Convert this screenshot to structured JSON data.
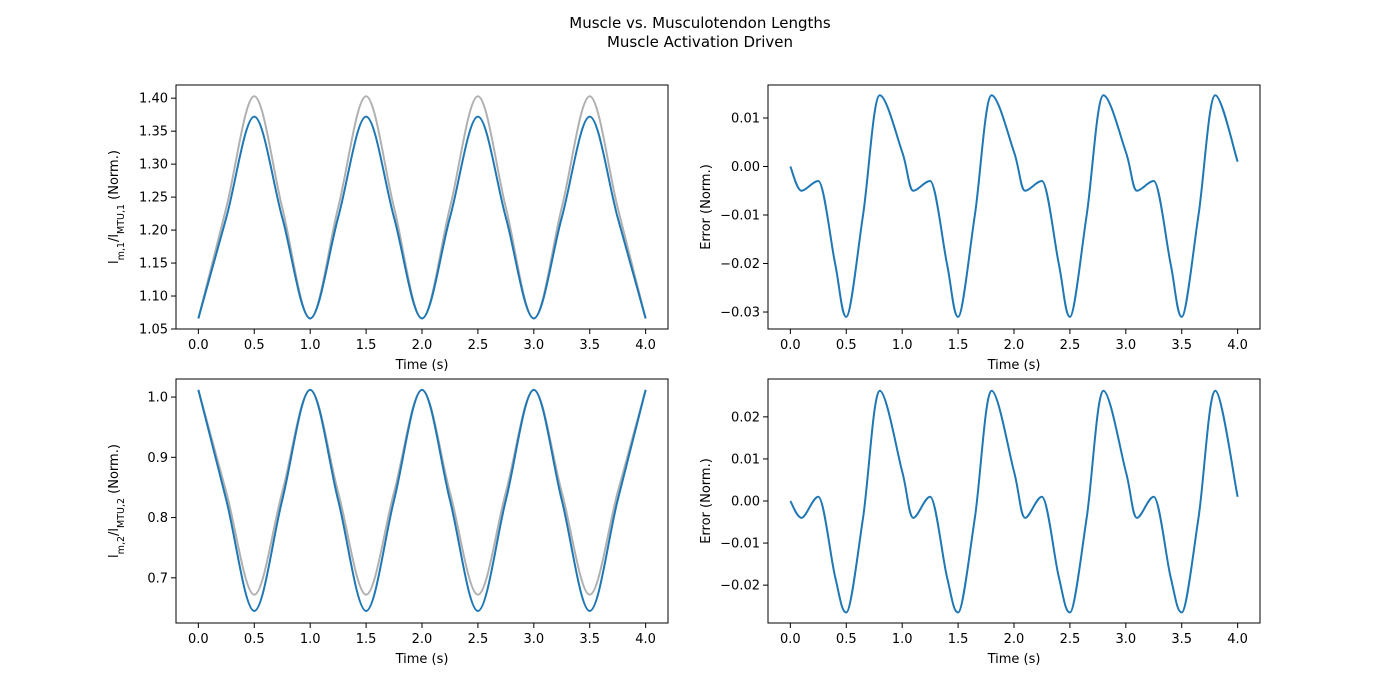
{
  "figure": {
    "title_line1": "Muscle vs. Musculotendon Lengths",
    "title_line2": "Muscle Activation Driven"
  },
  "colors": {
    "main_line": "#1f77b4",
    "reference_line": "#b0b0b0"
  },
  "chart_data": [
    {
      "type": "line",
      "id": "top-left",
      "xlabel": "Time (s)",
      "ylabel": "l_{m,1}/l_{MTU,1} (Norm.)",
      "xlim": [
        -0.2,
        4.2
      ],
      "ylim": [
        1.05,
        1.42
      ],
      "xticks": [
        0.0,
        0.5,
        1.0,
        1.5,
        2.0,
        2.5,
        3.0,
        3.5,
        4.0
      ],
      "xtick_labels": [
        "0.0",
        "0.5",
        "1.0",
        "1.5",
        "2.0",
        "2.5",
        "3.0",
        "3.5",
        "4.0"
      ],
      "yticks": [
        1.05,
        1.1,
        1.15,
        1.2,
        1.25,
        1.3,
        1.35,
        1.4
      ],
      "ytick_labels": [
        "1.05",
        "1.10",
        "1.15",
        "1.20",
        "1.25",
        "1.30",
        "1.35",
        "1.40"
      ],
      "series": [
        {
          "x": [
            0.0,
            0.25,
            0.5,
            0.75,
            1.0,
            1.25,
            1.5,
            1.75,
            2.0,
            2.25,
            2.5,
            2.75,
            3.0,
            3.25,
            3.5,
            3.75,
            4.0
          ],
          "y": [
            1.066,
            1.234,
            1.403,
            1.234,
            1.066,
            1.234,
            1.403,
            1.234,
            1.066,
            1.234,
            1.403,
            1.234,
            1.066,
            1.234,
            1.403,
            1.234,
            1.066
          ],
          "color": "#b0b0b0"
        },
        {
          "x": [
            0.0,
            0.25,
            0.5,
            0.75,
            1.0,
            1.25,
            1.5,
            1.75,
            2.0,
            2.25,
            2.5,
            2.75,
            3.0,
            3.25,
            3.5,
            3.75,
            4.0
          ],
          "y": [
            1.066,
            1.219,
            1.372,
            1.219,
            1.066,
            1.219,
            1.372,
            1.219,
            1.066,
            1.219,
            1.372,
            1.219,
            1.066,
            1.219,
            1.372,
            1.219,
            1.066
          ],
          "color": "#1f77b4"
        }
      ]
    },
    {
      "type": "line",
      "id": "top-right",
      "xlabel": "Time (s)",
      "ylabel": "Error (Norm.)",
      "xlim": [
        -0.2,
        4.2
      ],
      "ylim": [
        -0.0335,
        0.0168
      ],
      "xticks": [
        0.0,
        0.5,
        1.0,
        1.5,
        2.0,
        2.5,
        3.0,
        3.5,
        4.0
      ],
      "xtick_labels": [
        "0.0",
        "0.5",
        "1.0",
        "1.5",
        "2.0",
        "2.5",
        "3.0",
        "3.5",
        "4.0"
      ],
      "yticks": [
        -0.03,
        -0.02,
        -0.01,
        0.0,
        0.01
      ],
      "ytick_labels": [
        "−0.03",
        "−0.02",
        "−0.01",
        "0.00",
        "0.01"
      ],
      "series": [
        {
          "x": [
            0.0,
            0.1,
            0.25,
            0.4,
            0.5,
            0.65,
            0.8,
            1.0,
            1.1,
            1.25,
            1.4,
            1.5,
            1.65,
            1.8,
            2.0,
            2.1,
            2.25,
            2.4,
            2.5,
            2.65,
            2.8,
            3.0,
            3.1,
            3.25,
            3.4,
            3.5,
            3.65,
            3.8,
            4.0
          ],
          "y": [
            0.0,
            -0.005,
            -0.003,
            -0.02,
            -0.031,
            -0.01,
            0.0147,
            0.003,
            -0.005,
            -0.003,
            -0.02,
            -0.031,
            -0.01,
            0.0147,
            0.003,
            -0.005,
            -0.003,
            -0.02,
            -0.031,
            -0.01,
            0.0147,
            0.003,
            -0.005,
            -0.003,
            -0.02,
            -0.031,
            -0.01,
            0.0147,
            0.001
          ],
          "color": "#1f77b4"
        }
      ]
    },
    {
      "type": "line",
      "id": "bottom-left",
      "xlabel": "Time (s)",
      "ylabel": "l_{m,2}/l_{MTU,2} (Norm.)",
      "xlim": [
        -0.2,
        4.2
      ],
      "ylim": [
        0.625,
        1.03
      ],
      "xticks": [
        0.0,
        0.5,
        1.0,
        1.5,
        2.0,
        2.5,
        3.0,
        3.5,
        4.0
      ],
      "xtick_labels": [
        "0.0",
        "0.5",
        "1.0",
        "1.5",
        "2.0",
        "2.5",
        "3.0",
        "3.5",
        "4.0"
      ],
      "yticks": [
        0.7,
        0.8,
        0.9,
        1.0
      ],
      "ytick_labels": [
        "0.7",
        "0.8",
        "0.9",
        "1.0"
      ],
      "series": [
        {
          "x": [
            0.0,
            0.25,
            0.5,
            0.75,
            1.0,
            1.25,
            1.5,
            1.75,
            2.0,
            2.25,
            2.5,
            2.75,
            3.0,
            3.25,
            3.5,
            3.75,
            4.0
          ],
          "y": [
            1.012,
            0.842,
            0.672,
            0.842,
            1.012,
            0.842,
            0.672,
            0.842,
            1.012,
            0.842,
            0.672,
            0.842,
            1.012,
            0.842,
            0.672,
            0.842,
            1.012
          ],
          "color": "#b0b0b0"
        },
        {
          "x": [
            0.0,
            0.25,
            0.5,
            0.75,
            1.0,
            1.25,
            1.5,
            1.75,
            2.0,
            2.25,
            2.5,
            2.75,
            3.0,
            3.25,
            3.5,
            3.75,
            4.0
          ],
          "y": [
            1.012,
            0.829,
            0.645,
            0.829,
            1.012,
            0.829,
            0.645,
            0.829,
            1.012,
            0.829,
            0.645,
            0.829,
            1.012,
            0.829,
            0.645,
            0.829,
            1.012
          ],
          "color": "#1f77b4"
        }
      ]
    },
    {
      "type": "line",
      "id": "bottom-right",
      "xlabel": "Time (s)",
      "ylabel": "Error (Norm.)",
      "xlim": [
        -0.2,
        4.2
      ],
      "ylim": [
        -0.029,
        0.029
      ],
      "xticks": [
        0.0,
        0.5,
        1.0,
        1.5,
        2.0,
        2.5,
        3.0,
        3.5,
        4.0
      ],
      "xtick_labels": [
        "0.0",
        "0.5",
        "1.0",
        "1.5",
        "2.0",
        "2.5",
        "3.0",
        "3.5",
        "4.0"
      ],
      "yticks": [
        -0.02,
        -0.01,
        0.0,
        0.01,
        0.02
      ],
      "ytick_labels": [
        "−0.02",
        "−0.01",
        "0.00",
        "0.01",
        "0.02"
      ],
      "series": [
        {
          "x": [
            0.0,
            0.1,
            0.25,
            0.4,
            0.5,
            0.65,
            0.8,
            1.0,
            1.1,
            1.25,
            1.4,
            1.5,
            1.65,
            1.8,
            2.0,
            2.1,
            2.25,
            2.4,
            2.5,
            2.65,
            2.8,
            3.0,
            3.1,
            3.25,
            3.4,
            3.5,
            3.65,
            3.8,
            4.0
          ],
          "y": [
            0.0,
            -0.004,
            0.001,
            -0.018,
            -0.0265,
            -0.004,
            0.0262,
            0.007,
            -0.004,
            0.001,
            -0.018,
            -0.0265,
            -0.004,
            0.0262,
            0.007,
            -0.004,
            0.001,
            -0.018,
            -0.0265,
            -0.004,
            0.0262,
            0.007,
            -0.004,
            0.001,
            -0.018,
            -0.0265,
            -0.004,
            0.0262,
            0.001
          ],
          "color": "#1f77b4"
        }
      ]
    }
  ]
}
